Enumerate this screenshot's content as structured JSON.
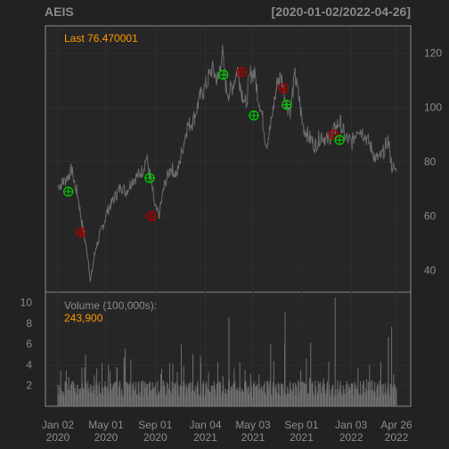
{
  "ticker": "AEIS",
  "date_range": "[2020-01-02/2022-04-26]",
  "last_label": "Last 76.470001",
  "volume_label": "Volume (100,000s):",
  "volume_value": "243,900",
  "colors": {
    "background": "#222222",
    "panel": "#262626",
    "frame": "#8a8a8a",
    "price_line": "#6e6e6e",
    "accent": "#ff9900",
    "grid": "#2e2e2e",
    "buy": "#00cc00",
    "sell": "#aa0000",
    "volume": "#6e6e6e"
  },
  "chart_data": [
    {
      "type": "line",
      "name": "price",
      "x": [
        "2020-01-02",
        "2020-01-20",
        "2020-02-05",
        "2020-02-20",
        "2020-03-05",
        "2020-03-18",
        "2020-03-23",
        "2020-04-05",
        "2020-04-20",
        "2020-05-05",
        "2020-05-20",
        "2020-06-08",
        "2020-06-20",
        "2020-07-05",
        "2020-07-20",
        "2020-08-01",
        "2020-08-10",
        "2020-08-20",
        "2020-09-01",
        "2020-09-10",
        "2020-09-25",
        "2020-10-10",
        "2020-10-25",
        "2020-11-05",
        "2020-11-20",
        "2020-12-05",
        "2020-12-20",
        "2021-01-05",
        "2021-01-20",
        "2021-02-05",
        "2021-02-15",
        "2021-02-25",
        "2021-03-05",
        "2021-03-15",
        "2021-03-25",
        "2021-04-05",
        "2021-04-15",
        "2021-04-25",
        "2021-05-05",
        "2021-05-15",
        "2021-05-25",
        "2021-06-05",
        "2021-06-15",
        "2021-06-25",
        "2021-07-05",
        "2021-07-15",
        "2021-07-25",
        "2021-08-05",
        "2021-08-15",
        "2021-08-25",
        "2021-09-05",
        "2021-09-20",
        "2021-10-05",
        "2021-10-20",
        "2021-11-05",
        "2021-11-20",
        "2021-12-05",
        "2021-12-20",
        "2022-01-05",
        "2022-01-20",
        "2022-02-05",
        "2022-02-20",
        "2022-03-05",
        "2022-03-20",
        "2022-04-05",
        "2022-04-15",
        "2022-04-26"
      ],
      "values": [
        71,
        73,
        77,
        68,
        55,
        44,
        36,
        48,
        55,
        62,
        66,
        71,
        69,
        73,
        75,
        77,
        82,
        74,
        63,
        60,
        72,
        78,
        75,
        83,
        93,
        95,
        103,
        108,
        114,
        110,
        121,
        107,
        105,
        109,
        114,
        106,
        101,
        112,
        113,
        105,
        98,
        86,
        92,
        102,
        111,
        110,
        101,
        99,
        112,
        104,
        93,
        89,
        86,
        90,
        88,
        91,
        95,
        89,
        87,
        93,
        90,
        86,
        81,
        82,
        88,
        78,
        76.47
      ],
      "ylim": [
        32,
        130
      ],
      "yticks": [
        40,
        60,
        80,
        100,
        120
      ]
    },
    {
      "type": "bar",
      "name": "volume",
      "unit": "100,000s",
      "ylim": [
        0,
        11
      ],
      "yticks": [
        2,
        4,
        6,
        8,
        10
      ]
    }
  ],
  "signals": {
    "buy": [
      {
        "date": "2020-01-28",
        "price": 69
      },
      {
        "date": "2020-08-18",
        "price": 74
      },
      {
        "date": "2021-02-18",
        "price": 112
      },
      {
        "date": "2021-05-05",
        "price": 97
      },
      {
        "date": "2021-07-26",
        "price": 101
      },
      {
        "date": "2021-12-05",
        "price": 88
      }
    ],
    "sell": [
      {
        "date": "2020-02-28",
        "price": 54
      },
      {
        "date": "2020-08-22",
        "price": 60
      },
      {
        "date": "2021-04-05",
        "price": 113
      },
      {
        "date": "2021-07-18",
        "price": 107
      },
      {
        "date": "2021-11-20",
        "price": 90
      }
    ]
  },
  "x_axis_ticks": [
    {
      "date": "2020-01-02",
      "line1": "Jan 02",
      "line2": "2020"
    },
    {
      "date": "2020-05-01",
      "line1": "May 01",
      "line2": "2020"
    },
    {
      "date": "2020-09-01",
      "line1": "Sep 01",
      "line2": "2020"
    },
    {
      "date": "2021-01-04",
      "line1": "Jan 04",
      "line2": "2021"
    },
    {
      "date": "2021-05-03",
      "line1": "May 03",
      "line2": "2021"
    },
    {
      "date": "2021-09-01",
      "line1": "Sep 01",
      "line2": "2021"
    },
    {
      "date": "2022-01-03",
      "line1": "Jan 03",
      "line2": "2022"
    },
    {
      "date": "2022-04-26",
      "line1": "Apr 26",
      "line2": "2022"
    }
  ]
}
